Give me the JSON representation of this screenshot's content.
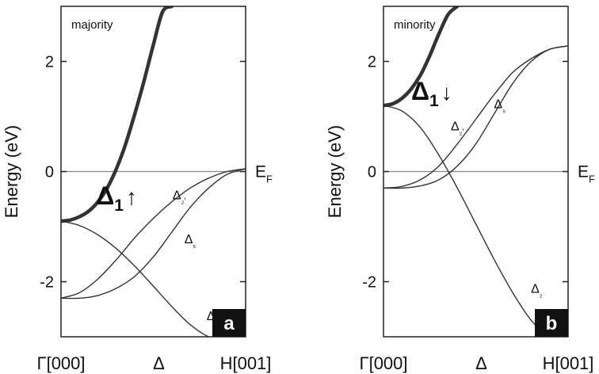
{
  "ylabel": "Energy (eV)",
  "x_ticks": [
    "Γ[000]",
    "Δ",
    "H[001]"
  ],
  "fermi_label": "E",
  "fermi_sub": "F",
  "colors": {
    "line": "#333333",
    "axis": "#222222",
    "badge_bg": "#111111",
    "badge_fg": "#ffffff",
    "fermi": "#888888"
  },
  "chart_data": [
    {
      "type": "line",
      "panel_label": "a",
      "title": "majority",
      "ylabel": "Energy (eV)",
      "ylim": [
        -3,
        3
      ],
      "xlim": [
        0,
        1
      ],
      "yticks": [
        "2",
        "0",
        "-2"
      ],
      "fermi_level": 0,
      "highlight": {
        "symbol": "Δ",
        "subscript": "1",
        "arrow": "↑"
      },
      "series": [
        {
          "name": "Δ₁",
          "bold": true,
          "x": [
            0,
            0.05,
            0.1,
            0.15,
            0.2,
            0.25,
            0.3,
            0.35,
            0.4,
            0.45,
            0.5,
            0.55,
            0.6
          ],
          "y": [
            -0.9,
            -0.88,
            -0.82,
            -0.72,
            -0.55,
            -0.3,
            0.05,
            0.5,
            1.05,
            1.65,
            2.3,
            2.9,
            3.0
          ]
        },
        {
          "name": "Δ₂",
          "label_x": 0.82,
          "label_y": -2.7,
          "x": [
            0,
            0.1,
            0.2,
            0.3,
            0.4,
            0.5,
            0.6,
            0.7,
            0.8,
            0.85
          ],
          "y": [
            -0.9,
            -0.98,
            -1.15,
            -1.4,
            -1.72,
            -2.08,
            -2.45,
            -2.78,
            -3.0,
            -3.0
          ]
        },
        {
          "name": "Δ₂′",
          "label_x": 0.64,
          "label_y": -0.5,
          "x": [
            0,
            0.1,
            0.2,
            0.3,
            0.4,
            0.5,
            0.6,
            0.7,
            0.8,
            0.9,
            1.0
          ],
          "y": [
            -2.3,
            -2.2,
            -1.95,
            -1.6,
            -1.2,
            -0.85,
            -0.55,
            -0.3,
            -0.12,
            0.0,
            0.05
          ]
        },
        {
          "name": "Δ₅",
          "label_x": 0.7,
          "label_y": -1.3,
          "x": [
            0,
            0.1,
            0.2,
            0.3,
            0.4,
            0.5,
            0.6,
            0.7,
            0.8,
            0.9,
            1.0
          ],
          "y": [
            -2.3,
            -2.3,
            -2.25,
            -2.12,
            -1.9,
            -1.55,
            -1.1,
            -0.65,
            -0.3,
            -0.05,
            0.05
          ]
        }
      ]
    },
    {
      "type": "line",
      "panel_label": "b",
      "title": "minority",
      "ylabel": "Energy (eV)",
      "ylim": [
        -3,
        3
      ],
      "xlim": [
        0,
        1
      ],
      "yticks": [
        "2",
        "0",
        "-2"
      ],
      "fermi_level": 0,
      "highlight": {
        "symbol": "Δ",
        "subscript": "1",
        "arrow": "↓"
      },
      "series": [
        {
          "name": "Δ₁",
          "bold": true,
          "x": [
            0,
            0.05,
            0.1,
            0.15,
            0.2,
            0.25,
            0.3,
            0.35,
            0.4
          ],
          "y": [
            1.2,
            1.23,
            1.33,
            1.5,
            1.75,
            2.1,
            2.5,
            2.85,
            3.0
          ]
        },
        {
          "name": "Δ₂",
          "label_x": 0.83,
          "label_y": -2.2,
          "x": [
            0,
            0.1,
            0.2,
            0.3,
            0.4,
            0.5,
            0.6,
            0.7,
            0.8,
            0.9,
            1.0
          ],
          "y": [
            1.2,
            1.1,
            0.8,
            0.3,
            -0.3,
            -0.95,
            -1.6,
            -2.2,
            -2.7,
            -3.0,
            -3.0
          ]
        },
        {
          "name": "Δ₂′",
          "label_x": 0.4,
          "label_y": 0.75,
          "x": [
            0,
            0.1,
            0.2,
            0.3,
            0.4,
            0.5,
            0.6,
            0.7,
            0.8,
            0.9,
            1.0
          ],
          "y": [
            -0.3,
            -0.27,
            -0.15,
            0.1,
            0.5,
            0.95,
            1.4,
            1.8,
            2.05,
            2.22,
            2.28
          ]
        },
        {
          "name": "Δ₅",
          "label_x": 0.63,
          "label_y": 1.15,
          "x": [
            0,
            0.1,
            0.2,
            0.3,
            0.4,
            0.5,
            0.6,
            0.7,
            0.8,
            0.9,
            1.0
          ],
          "y": [
            -0.3,
            -0.3,
            -0.26,
            -0.15,
            0.1,
            0.5,
            1.05,
            1.6,
            2.0,
            2.22,
            2.28
          ]
        }
      ]
    }
  ]
}
